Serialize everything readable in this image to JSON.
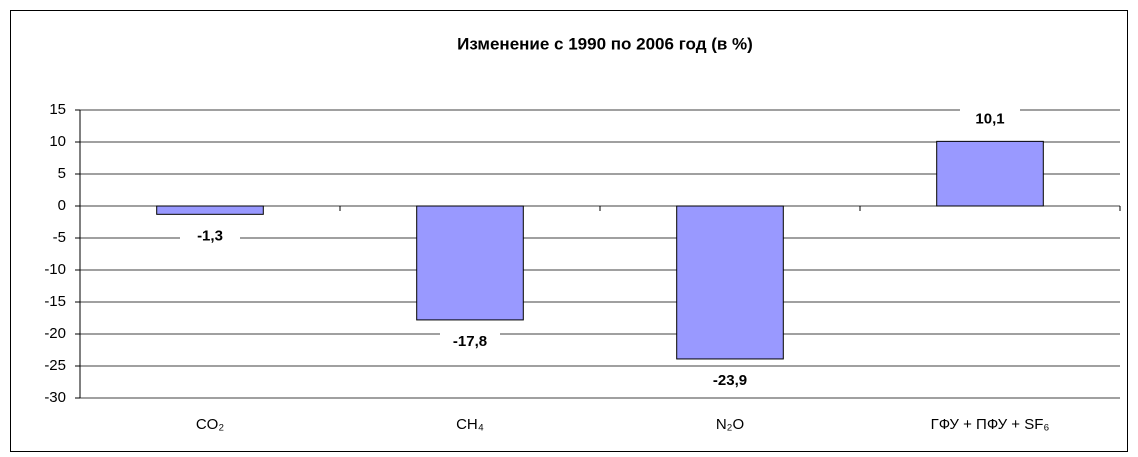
{
  "chart_data": {
    "type": "bar",
    "title": "Изменение с 1990 по 2006 год (в %)",
    "categories": [
      "CO₂",
      "CH₄",
      "N₂O",
      "ГФУ + ПФУ + SF₆"
    ],
    "values": [
      -1.3,
      -17.8,
      -23.9,
      10.1
    ],
    "value_labels": [
      "-1,3",
      "-17,8",
      "-23,9",
      "10,1"
    ],
    "color": "#9999ff",
    "ylim": [
      -30,
      15
    ],
    "yticks": [
      -30,
      -25,
      -20,
      -15,
      -10,
      -5,
      0,
      5,
      10,
      15
    ],
    "grid": true
  }
}
